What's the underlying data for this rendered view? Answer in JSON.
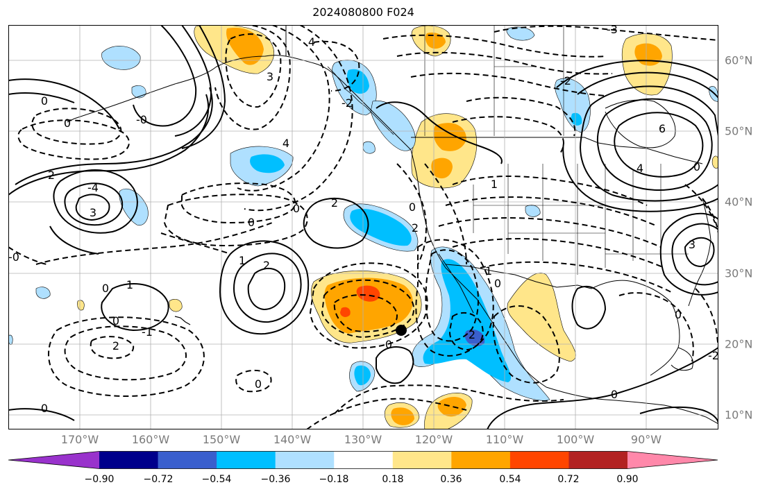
{
  "title": "2024080800 F024",
  "axes": {
    "lon_labels": [
      "170°W",
      "160°W",
      "150°W",
      "140°W",
      "130°W",
      "120°W",
      "110°W",
      "100°W",
      "90°W"
    ],
    "lat_labels": [
      "60°N",
      "50°N",
      "40°N",
      "30°N",
      "20°N",
      "10°N"
    ],
    "lon_range": [
      -180,
      -80
    ],
    "lat_range": [
      8,
      65
    ]
  },
  "colorbar": {
    "tick_labels": [
      "−0.90",
      "−0.72",
      "−0.54",
      "−0.36",
      "−0.18",
      "0.18",
      "0.36",
      "0.54",
      "0.72",
      "0.90"
    ],
    "colors": [
      "#9932cc",
      "#00008b",
      "#3a5fcd",
      "#00bfff",
      "#afe0ff",
      "#ffffff",
      "#ffe68a",
      "#ffa500",
      "#ff4500",
      "#b22222",
      "#ff88aa"
    ]
  },
  "contour_labels": [
    "0",
    "0",
    "0",
    "0",
    "0",
    "0",
    "0",
    "0",
    "0",
    "0",
    "0",
    "0",
    "0",
    "1",
    "1",
    "1",
    "1",
    "2",
    "2",
    "2",
    "2",
    "2",
    "2",
    "3",
    "3",
    "3",
    "4",
    "4",
    "4",
    "6",
    "-0",
    "-0",
    "-2",
    "-2",
    "-2",
    "-3",
    "-4",
    "-1",
    "0"
  ],
  "colors": {
    "land_line": "#000000",
    "grid": "#b0b0b0",
    "tick_text": "#7a7a7a"
  }
}
